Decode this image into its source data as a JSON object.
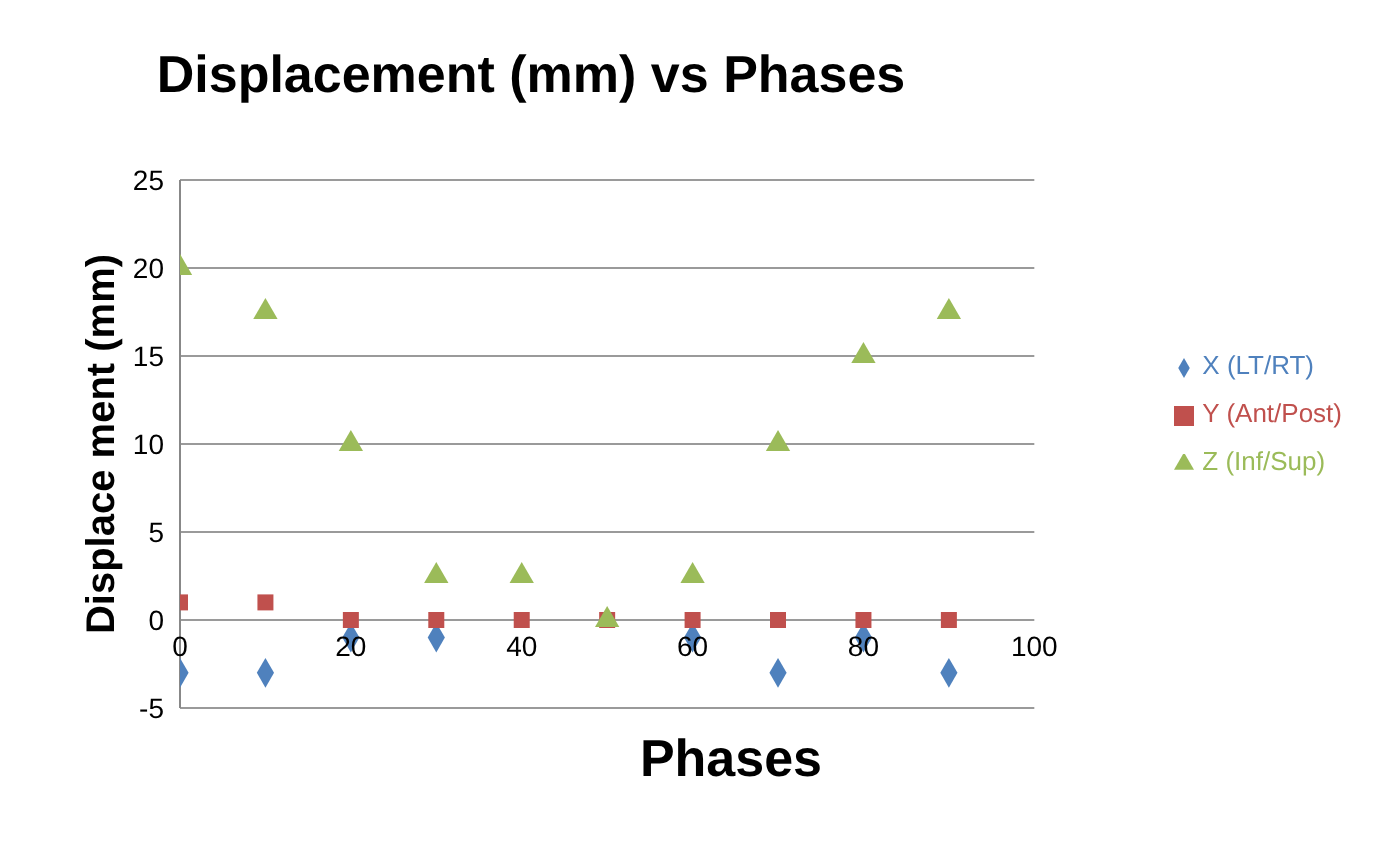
{
  "chart_data": {
    "type": "scatter",
    "title": "Displacement (mm) vs Phases",
    "xlabel": "Phases",
    "ylabel": "Displace ment (mm)",
    "x": [
      0,
      10,
      20,
      30,
      40,
      50,
      60,
      70,
      80,
      90
    ],
    "series": [
      {
        "name": "X (LT/RT)",
        "color": "#4f81bd",
        "marker": "diamond",
        "values": [
          -3,
          -3,
          -1,
          -1,
          null,
          null,
          -1,
          -3,
          -1,
          -3
        ]
      },
      {
        "name": "Y (Ant/Post)",
        "color": "#c0504d",
        "marker": "square",
        "values": [
          1,
          1,
          0,
          0,
          0,
          0,
          0,
          0,
          0,
          0
        ]
      },
      {
        "name": "Z (Inf/Sup)",
        "color": "#9bbb59",
        "marker": "triangle",
        "values": [
          20,
          17.5,
          10,
          2.5,
          2.5,
          0,
          2.5,
          10,
          15,
          17.5
        ]
      }
    ],
    "xlim": [
      0,
      100
    ],
    "xticks": [
      0,
      20,
      40,
      60,
      80,
      100
    ],
    "ylim": [
      -5,
      25
    ],
    "yticks": [
      -5,
      0,
      5,
      10,
      15,
      20,
      25
    ],
    "grid": "y",
    "legend": "right"
  }
}
